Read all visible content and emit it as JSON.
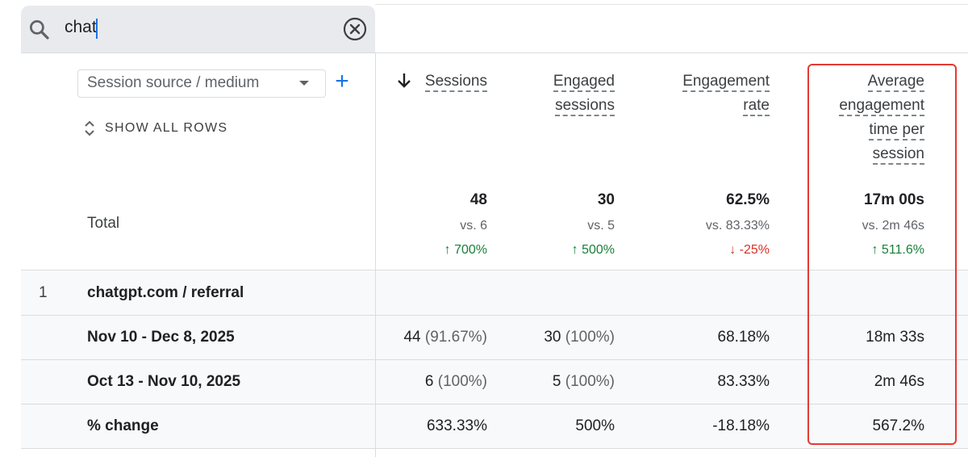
{
  "search": {
    "value": "chat"
  },
  "dimension": {
    "select_label": "Session source / medium",
    "add_label": "+",
    "show_all_label": "SHOW ALL ROWS"
  },
  "columns": [
    {
      "key": "sessions",
      "lines": [
        "Sessions"
      ],
      "sorted": "descending"
    },
    {
      "key": "engaged",
      "lines": [
        "Engaged",
        "sessions"
      ]
    },
    {
      "key": "rate",
      "lines": [
        "Engagement",
        "rate"
      ]
    },
    {
      "key": "avg_time",
      "lines": [
        "Average",
        "engagement",
        "time per",
        "session"
      ]
    }
  ],
  "totals": {
    "label": "Total",
    "values": [
      "48",
      "30",
      "62.5%",
      "17m 00s"
    ],
    "vs": [
      "vs. 6",
      "vs. 5",
      "vs. 83.33%",
      "vs. 2m 46s"
    ],
    "change": [
      {
        "text": "700%",
        "direction": "up"
      },
      {
        "text": "500%",
        "direction": "up"
      },
      {
        "text": "-25%",
        "direction": "down"
      },
      {
        "text": "511.6%",
        "direction": "up"
      }
    ]
  },
  "group": {
    "index": "1",
    "label": "chatgpt.com / referral"
  },
  "rows": [
    {
      "label": "Nov 10 - Dec 8, 2025",
      "cells": [
        {
          "value": "44",
          "pct": "(91.67%)"
        },
        {
          "value": "30",
          "pct": "(100%)"
        },
        {
          "value": "68.18%",
          "pct": ""
        },
        {
          "value": "18m 33s",
          "pct": ""
        }
      ]
    },
    {
      "label": "Oct 13 - Nov 10, 2025",
      "cells": [
        {
          "value": "6",
          "pct": "(100%)"
        },
        {
          "value": "5",
          "pct": "(100%)"
        },
        {
          "value": "83.33%",
          "pct": ""
        },
        {
          "value": "2m 46s",
          "pct": ""
        }
      ]
    },
    {
      "label": "% change",
      "cells": [
        {
          "value": "633.33%",
          "pct": ""
        },
        {
          "value": "500%",
          "pct": ""
        },
        {
          "value": "-18.18%",
          "pct": ""
        },
        {
          "value": "567.2%",
          "pct": ""
        }
      ]
    }
  ],
  "colors": {
    "accent": "#1a73e8",
    "positive": "#188038",
    "negative": "#d93025",
    "highlight": "#e53935"
  }
}
